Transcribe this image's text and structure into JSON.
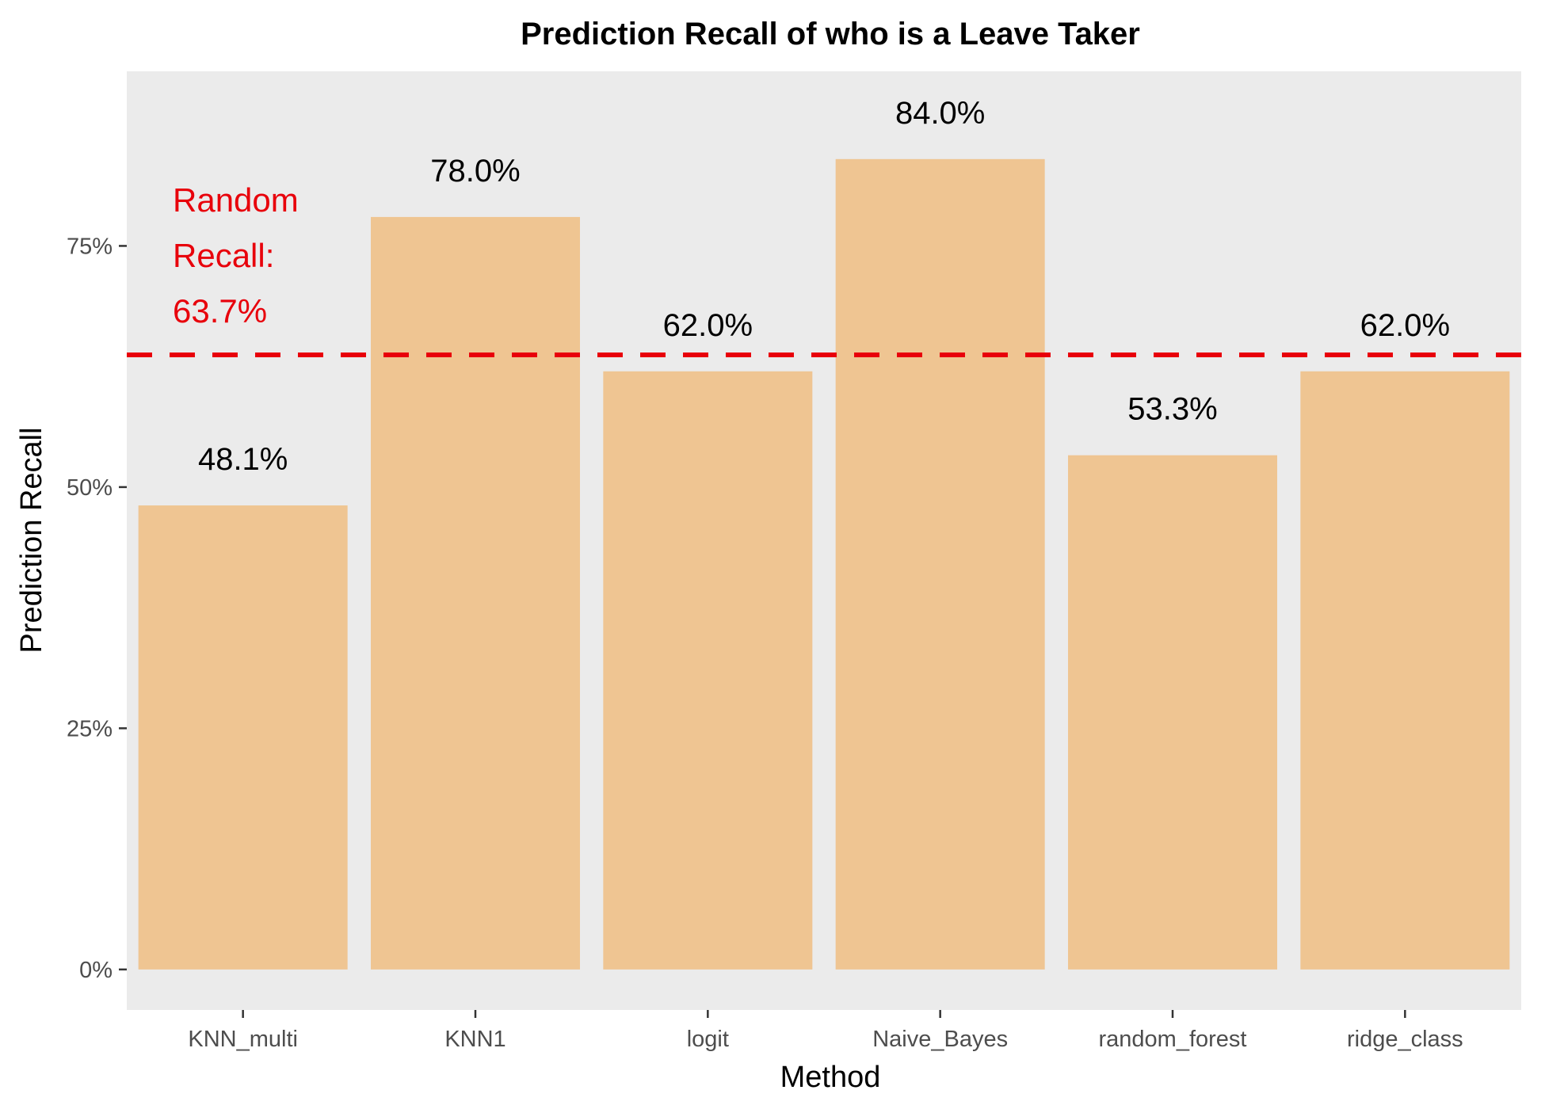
{
  "chart_data": {
    "type": "bar",
    "title": "Prediction Recall of who is a Leave Taker",
    "xlabel": "Method",
    "ylabel": "Prediction Recall",
    "categories": [
      "KNN_multi",
      "KNN1",
      "logit",
      "Naive_Bayes",
      "random_forest",
      "ridge_class"
    ],
    "values": [
      48.1,
      78.0,
      62.0,
      84.0,
      53.3,
      62.0
    ],
    "data_labels": [
      "48.1%",
      "78.0%",
      "62.0%",
      "84.0%",
      "53.3%",
      "62.0%"
    ],
    "ylim": [
      -4.2,
      93.1
    ],
    "yticks": [
      0,
      25,
      50,
      75
    ],
    "ytick_labels": [
      "0%",
      "25%",
      "50%",
      "75%"
    ],
    "reference_line": {
      "value": 63.7,
      "style": "dashed",
      "color": "#e8000b",
      "label_lines": [
        "Random",
        "Recall:",
        "63.7%"
      ]
    },
    "bar_color": "#efc592",
    "panel_background": "#ebebeb",
    "grid": false,
    "legend": "none"
  }
}
